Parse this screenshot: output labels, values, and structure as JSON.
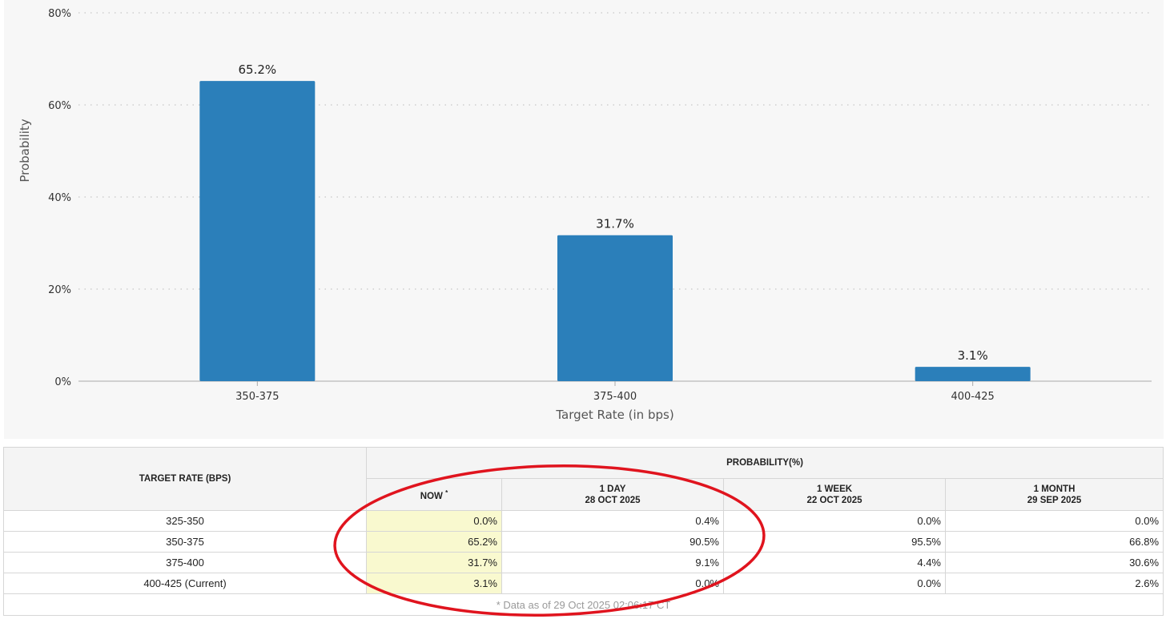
{
  "chart_data": {
    "type": "bar",
    "categories": [
      "350-375",
      "375-400",
      "400-425"
    ],
    "values": [
      65.2,
      31.7,
      3.1
    ],
    "data_labels": [
      "65.2%",
      "31.7%",
      "3.1%"
    ],
    "xlabel": "Target Rate (in bps)",
    "ylabel": "Probability",
    "ylim": [
      0,
      80
    ],
    "yticks": [
      "0%",
      "20%",
      "40%",
      "60%",
      "80%"
    ],
    "ytick_values": [
      0,
      20,
      40,
      60,
      80
    ],
    "grid": "dotted horizontal",
    "bar_color": "#2b7fba"
  },
  "table": {
    "rate_header": "TARGET RATE (BPS)",
    "prob_header": "PROBABILITY(%)",
    "now_label": "NOW",
    "now_marker": "*",
    "columns": [
      {
        "line1": "1 DAY",
        "line2": "28 OCT 2025"
      },
      {
        "line1": "1 WEEK",
        "line2": "22 OCT 2025"
      },
      {
        "line1": "1 MONTH",
        "line2": "29 SEP 2025"
      }
    ],
    "rows": [
      {
        "rate": "325-350",
        "now": "0.0%",
        "day": "0.4%",
        "week": "0.0%",
        "month": "0.0%"
      },
      {
        "rate": "350-375",
        "now": "65.2%",
        "day": "90.5%",
        "week": "95.5%",
        "month": "66.8%"
      },
      {
        "rate": "375-400",
        "now": "31.7%",
        "day": "9.1%",
        "week": "4.4%",
        "month": "30.6%"
      },
      {
        "rate": "400-425 (Current)",
        "now": "3.1%",
        "day": "0.0%",
        "week": "0.0%",
        "month": "2.6%"
      }
    ],
    "footnote": "* Data as of 29 Oct 2025 02:06:17 CT"
  },
  "annotation": {
    "color": "#e0141e"
  },
  "colors": {
    "now_highlight": "#f9f9cf",
    "panel_bg": "#f7f7f7"
  }
}
